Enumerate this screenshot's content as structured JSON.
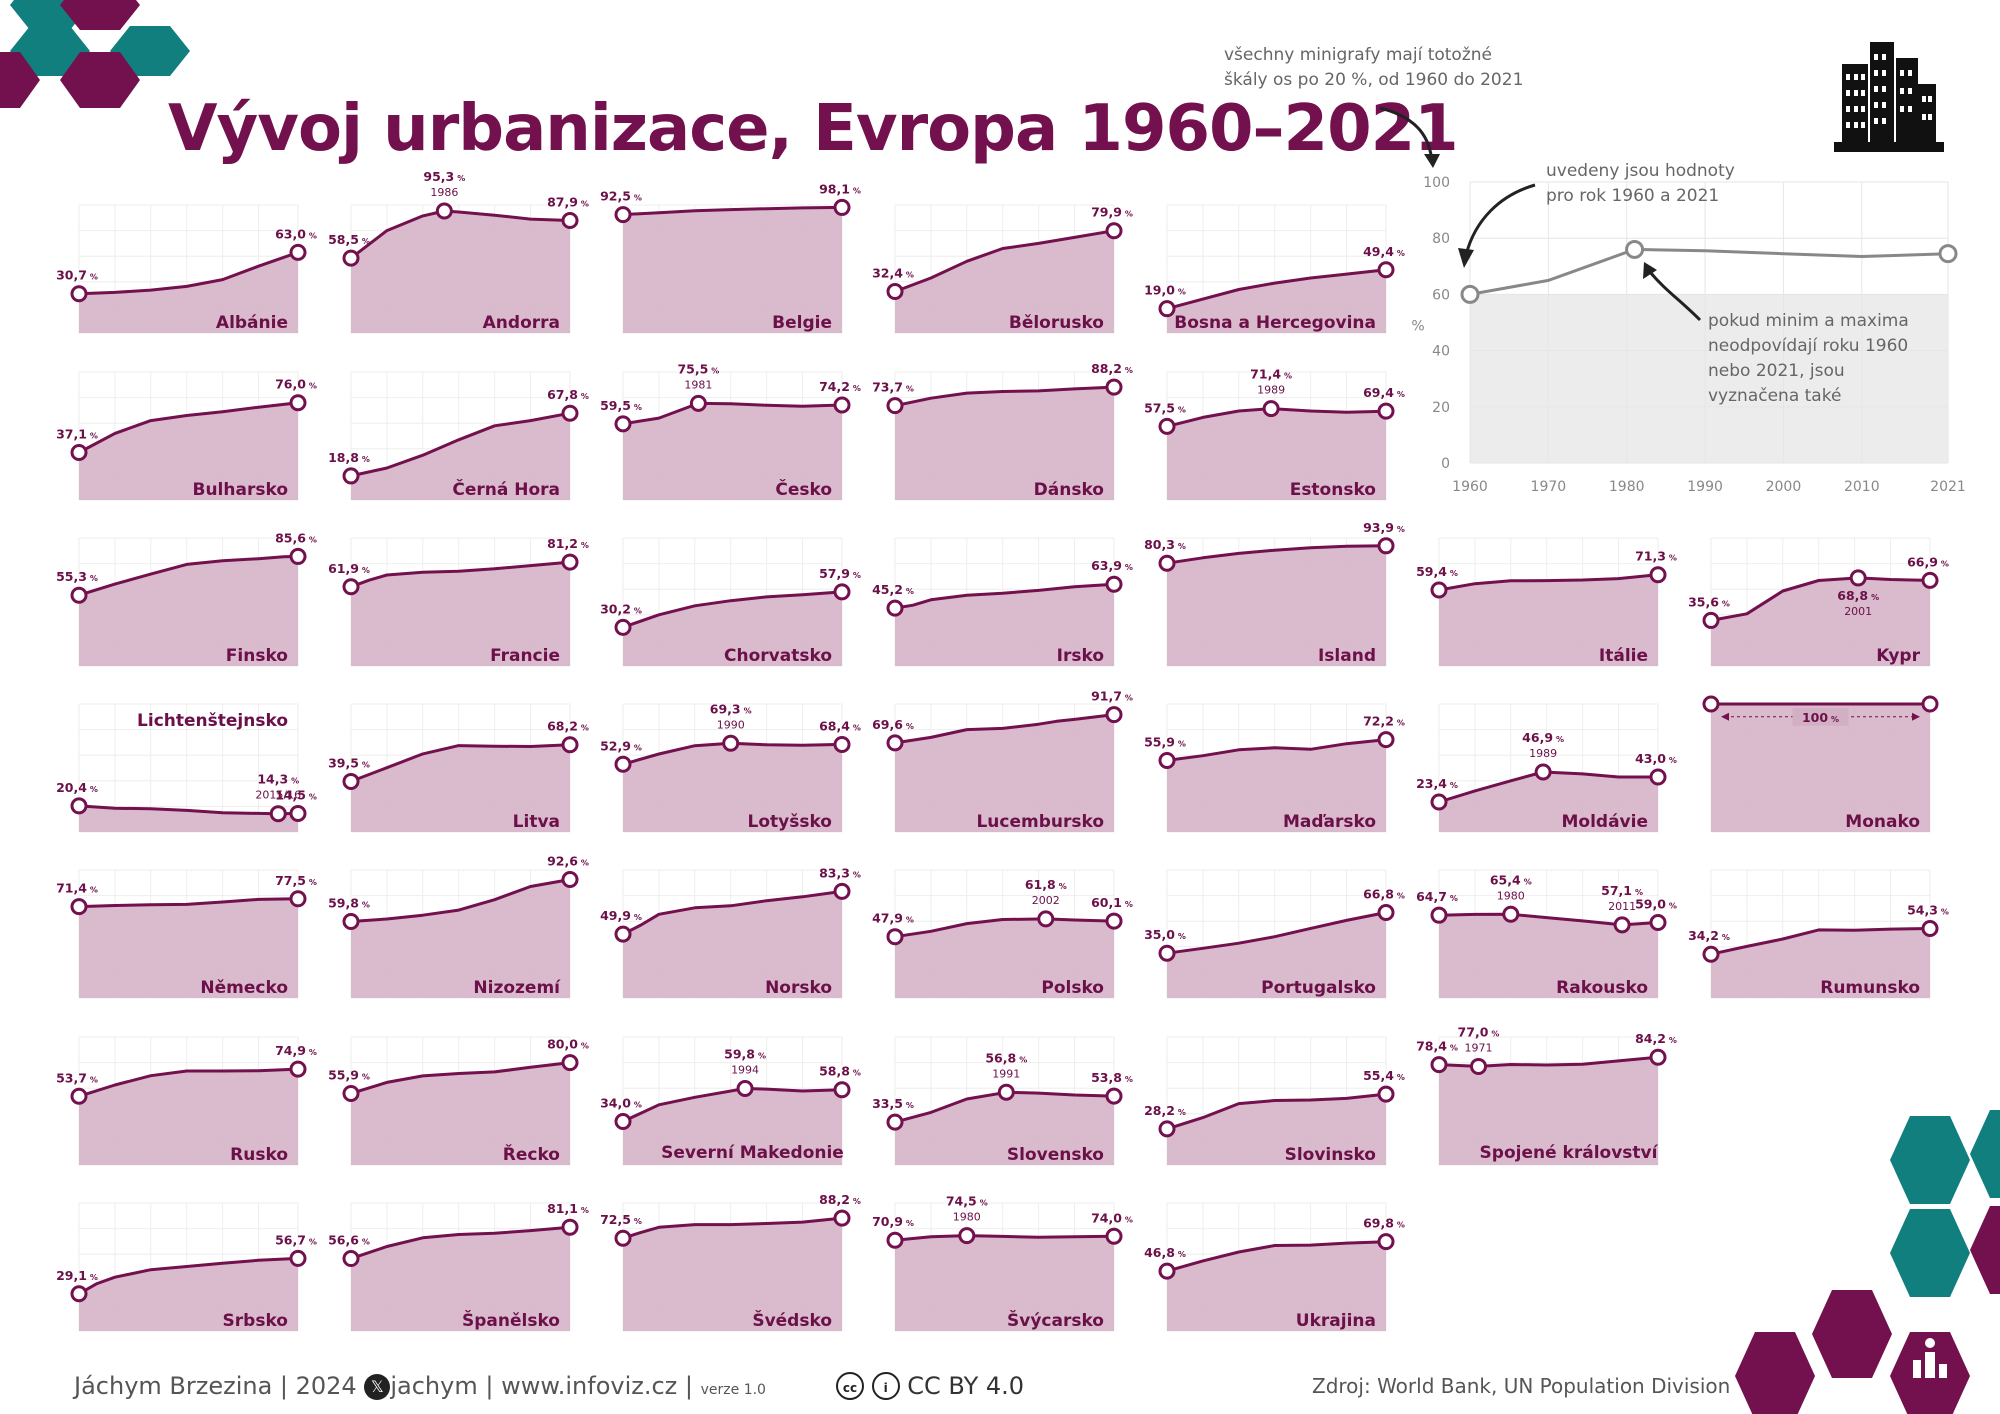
{
  "title": "Vývoj urbanizace, Evropa 1960–2021",
  "colors": {
    "primary": "#73104e",
    "fill": "#d3afc4",
    "teal": "#127f7f",
    "grey": "#888888"
  },
  "legend": {
    "note_top": [
      "všechny minigrafy mají totožné",
      "škály os po 20 %, od 1960 do 2021"
    ],
    "note_values": [
      "uvedeny jsou hodnoty",
      "pro rok 1960 a 2021"
    ],
    "note_minmax": [
      "pokud minim a maxima",
      "neodpovídají roku 1960",
      "nebo 2021, jsou",
      "vyznačena také"
    ],
    "y_unit": "%",
    "y_ticks": [
      "0",
      "20",
      "40",
      "60",
      "80",
      "100"
    ],
    "x_ticks": [
      "1960",
      "1970",
      "1980",
      "1990",
      "2000",
      "2010",
      "2021"
    ]
  },
  "footer": {
    "author": "Jáchym Brzezina | 2024",
    "x_handle": "jachym",
    "site": "www.infoviz.cz",
    "version": "verze 1.0",
    "license": "CC BY 4.0",
    "source": "Zdroj: World Bank, UN Population Division"
  },
  "chart_data": {
    "type": "line",
    "x_range": [
      1960,
      2021
    ],
    "y_range": [
      0,
      100
    ],
    "y_tick_step": 20,
    "unit": "%",
    "legend_example": {
      "x": [
        1960,
        1970,
        1981,
        1990,
        2000,
        2010,
        2021
      ],
      "y": [
        60,
        65,
        76,
        75.5,
        74.5,
        73.5,
        74.5
      ]
    },
    "countries": [
      {
        "name": "Albánie",
        "x": [
          1960,
          1970,
          1980,
          1990,
          2000,
          2010,
          2021
        ],
        "y": [
          30.7,
          31.7,
          33.5,
          36.4,
          41.7,
          52.2,
          63.0
        ],
        "start_label": "30,7",
        "end_label": "63,0"
      },
      {
        "name": "Andorra",
        "x": [
          1960,
          1970,
          1980,
          1986,
          1990,
          2000,
          2010,
          2021
        ],
        "y": [
          58.5,
          80.0,
          91.5,
          95.3,
          94.5,
          92.0,
          89.0,
          87.9
        ],
        "start_label": "58,5",
        "end_label": "87,9",
        "extra": [
          {
            "x": 1986,
            "y": 95.3,
            "label": "95,3",
            "year": "1986"
          }
        ]
      },
      {
        "name": "Belgie",
        "x": [
          1960,
          1970,
          1980,
          1990,
          2000,
          2010,
          2021
        ],
        "y": [
          92.5,
          94.0,
          95.5,
          96.4,
          97.1,
          97.7,
          98.1
        ],
        "start_label": "92,5",
        "end_label": "98,1"
      },
      {
        "name": "Bělorusko",
        "x": [
          1960,
          1970,
          1980,
          1990,
          2000,
          2010,
          2021
        ],
        "y": [
          32.4,
          43.0,
          56.0,
          66.0,
          70.0,
          74.7,
          79.9
        ],
        "start_label": "32,4",
        "end_label": "79,9"
      },
      {
        "name": "Bosna a Hercegovina",
        "x": [
          1960,
          1970,
          1980,
          1990,
          2000,
          2010,
          2021
        ],
        "y": [
          19.0,
          26.5,
          34.0,
          39.0,
          43.0,
          46.0,
          49.4
        ],
        "start_label": "19,0",
        "end_label": "49,4"
      },
      {
        "name": "Bulharsko",
        "x": [
          1960,
          1970,
          1980,
          1990,
          2000,
          2010,
          2021
        ],
        "y": [
          37.1,
          52.0,
          62.0,
          66.0,
          69.0,
          72.5,
          76.0
        ],
        "start_label": "37,1",
        "end_label": "76,0"
      },
      {
        "name": "Černá Hora",
        "x": [
          1960,
          1970,
          1980,
          1990,
          2000,
          2010,
          2021
        ],
        "y": [
          18.8,
          25.0,
          35.0,
          47.0,
          58.0,
          62.0,
          67.8
        ],
        "start_label": "18,8",
        "end_label": "67,8"
      },
      {
        "name": "Česko",
        "x": [
          1960,
          1970,
          1981,
          1990,
          2000,
          2010,
          2021
        ],
        "y": [
          59.5,
          64.0,
          75.5,
          75.2,
          74.0,
          73.3,
          74.2
        ],
        "start_label": "59,5",
        "end_label": "74,2",
        "extra": [
          {
            "x": 1981,
            "y": 75.5,
            "label": "75,5",
            "year": "1981"
          }
        ]
      },
      {
        "name": "Dánsko",
        "x": [
          1960,
          1970,
          1980,
          1990,
          2000,
          2010,
          2021
        ],
        "y": [
          73.7,
          79.5,
          83.5,
          84.8,
          85.2,
          86.8,
          88.2
        ],
        "start_label": "73,7",
        "end_label": "88,2"
      },
      {
        "name": "Estonsko",
        "x": [
          1960,
          1970,
          1980,
          1989,
          2000,
          2010,
          2021
        ],
        "y": [
          57.5,
          64.5,
          69.5,
          71.4,
          69.5,
          68.5,
          69.4
        ],
        "start_label": "57,5",
        "end_label": "69,4",
        "extra": [
          {
            "x": 1989,
            "y": 71.4,
            "label": "71,4",
            "year": "1989"
          }
        ]
      },
      {
        "name": "Finsko",
        "x": [
          1960,
          1970,
          1980,
          1990,
          2000,
          2010,
          2017,
          2021
        ],
        "y": [
          55.3,
          64.0,
          71.8,
          79.4,
          82.2,
          83.8,
          85.3,
          85.6
        ],
        "start_label": "55,3",
        "end_label": "85,6"
      },
      {
        "name": "Francie",
        "x": [
          1960,
          1965,
          1970,
          1980,
          1990,
          2000,
          2010,
          2021
        ],
        "y": [
          61.9,
          67.0,
          71.1,
          73.3,
          74.1,
          75.9,
          78.4,
          81.2
        ],
        "start_label": "61,9",
        "end_label": "81,2"
      },
      {
        "name": "Chorvatsko",
        "x": [
          1960,
          1970,
          1980,
          1990,
          2000,
          2010,
          2021
        ],
        "y": [
          30.2,
          40.0,
          47.0,
          51.0,
          54.0,
          55.6,
          57.9
        ],
        "start_label": "30,2",
        "end_label": "57,9"
      },
      {
        "name": "Irsko",
        "x": [
          1960,
          1965,
          1970,
          1980,
          1990,
          2000,
          2010,
          2021
        ],
        "y": [
          45.2,
          47.5,
          51.7,
          55.3,
          56.9,
          59.1,
          61.9,
          63.9
        ],
        "start_label": "45,2",
        "end_label": "63,9"
      },
      {
        "name": "Island",
        "x": [
          1960,
          1970,
          1980,
          1990,
          2000,
          2010,
          2021
        ],
        "y": [
          80.3,
          84.5,
          88.0,
          90.5,
          92.4,
          93.6,
          93.9
        ],
        "start_label": "80,3",
        "end_label": "93,9"
      },
      {
        "name": "Itálie",
        "x": [
          1960,
          1970,
          1980,
          1990,
          2000,
          2010,
          2021
        ],
        "y": [
          59.4,
          64.3,
          66.6,
          66.7,
          67.2,
          68.3,
          71.3
        ],
        "start_label": "59,4",
        "end_label": "71,3"
      },
      {
        "name": "Kypr",
        "x": [
          1960,
          1970,
          1980,
          1990,
          2001,
          2010,
          2021
        ],
        "y": [
          35.6,
          40.8,
          58.6,
          66.8,
          68.8,
          67.6,
          66.9
        ],
        "start_label": "35,6",
        "end_label": "66,9",
        "extra": [
          {
            "x": 2001,
            "y": 68.8,
            "label": "68,8",
            "year": "2001",
            "below": true
          }
        ]
      },
      {
        "name": "Lichtenštejnsko",
        "x": [
          1960,
          1970,
          1980,
          1990,
          2000,
          2010,
          2015,
          2016,
          2021
        ],
        "y": [
          20.4,
          18.5,
          18.2,
          16.9,
          15.1,
          14.5,
          14.3,
          14.3,
          14.5
        ],
        "start_label": "20,4",
        "end_label": "14,5",
        "label_top": true,
        "extra": [
          {
            "x": 2015.5,
            "y": 14.3,
            "label": "14,3",
            "year": "2015/16"
          }
        ]
      },
      {
        "name": "Litva",
        "x": [
          1960,
          1970,
          1980,
          1990,
          2000,
          2010,
          2021
        ],
        "y": [
          39.5,
          50.2,
          61.0,
          67.5,
          67.0,
          66.8,
          68.2
        ],
        "start_label": "39,5",
        "end_label": "68,2"
      },
      {
        "name": "Lotyšsko",
        "x": [
          1960,
          1970,
          1980,
          1990,
          2000,
          2010,
          2021
        ],
        "y": [
          52.9,
          60.9,
          67.4,
          69.3,
          68.1,
          67.8,
          68.4
        ],
        "start_label": "52,9",
        "end_label": "68,4",
        "extra": [
          {
            "x": 1990,
            "y": 69.3,
            "label": "69,3",
            "year": "1990"
          }
        ]
      },
      {
        "name": "Lucembursko",
        "x": [
          1960,
          1970,
          1980,
          1990,
          2000,
          2005,
          2010,
          2021
        ],
        "y": [
          69.6,
          73.9,
          80.0,
          80.9,
          84.2,
          86.5,
          88.0,
          91.7
        ],
        "start_label": "69,6",
        "end_label": "91,7"
      },
      {
        "name": "Maďarsko",
        "x": [
          1960,
          1970,
          1980,
          1990,
          2000,
          2010,
          2021
        ],
        "y": [
          55.9,
          59.6,
          64.2,
          65.8,
          64.6,
          69.0,
          72.2
        ],
        "start_label": "55,9",
        "end_label": "72,2"
      },
      {
        "name": "Moldávie",
        "x": [
          1960,
          1970,
          1980,
          1989,
          2000,
          2010,
          2021
        ],
        "y": [
          23.4,
          32.1,
          40.0,
          46.9,
          45.4,
          43.0,
          43.0
        ],
        "start_label": "23,4",
        "end_label": "43,0",
        "extra": [
          {
            "x": 1989,
            "y": 46.9,
            "label": "46,9",
            "year": "1989"
          }
        ]
      },
      {
        "name": "Monako",
        "x": [
          1960,
          2021
        ],
        "y": [
          100,
          100
        ],
        "start_label": "",
        "end_label": "",
        "constant_label": "100"
      },
      {
        "name": "Německo",
        "x": [
          1960,
          1970,
          1980,
          1990,
          2000,
          2010,
          2021
        ],
        "y": [
          71.4,
          72.3,
          72.8,
          73.1,
          75.0,
          77.0,
          77.5
        ],
        "start_label": "71,4",
        "end_label": "77,5"
      },
      {
        "name": "Nizozemí",
        "x": [
          1960,
          1970,
          1980,
          1990,
          2000,
          2010,
          2021
        ],
        "y": [
          59.8,
          61.7,
          64.7,
          68.7,
          76.8,
          87.1,
          92.6
        ],
        "start_label": "59,8",
        "end_label": "92,6"
      },
      {
        "name": "Norsko",
        "x": [
          1960,
          1965,
          1970,
          1980,
          1990,
          2000,
          2010,
          2021
        ],
        "y": [
          49.9,
          57.0,
          65.4,
          70.5,
          72.0,
          76.0,
          79.1,
          83.3
        ],
        "start_label": "49,9",
        "end_label": "83,3"
      },
      {
        "name": "Polsko",
        "x": [
          1960,
          1970,
          1980,
          1990,
          2002,
          2010,
          2021
        ],
        "y": [
          47.9,
          52.1,
          58.1,
          61.3,
          61.8,
          60.9,
          60.1
        ],
        "start_label": "47,9",
        "end_label": "60,1",
        "extra": [
          {
            "x": 2002,
            "y": 61.8,
            "label": "61,8",
            "year": "2002"
          }
        ]
      },
      {
        "name": "Portugalsko",
        "x": [
          1960,
          1970,
          1980,
          1990,
          2000,
          2010,
          2021
        ],
        "y": [
          35.0,
          38.8,
          42.8,
          47.9,
          54.4,
          60.6,
          66.8
        ],
        "start_label": "35,0",
        "end_label": "66,8"
      },
      {
        "name": "Rakousko",
        "x": [
          1960,
          1970,
          1980,
          1990,
          2000,
          2011,
          2021
        ],
        "y": [
          64.7,
          65.3,
          65.4,
          62.8,
          60.2,
          57.1,
          59.0
        ],
        "start_label": "64,7",
        "end_label": "59,0",
        "extra": [
          {
            "x": 1980,
            "y": 65.4,
            "label": "65,4",
            "year": "1980"
          },
          {
            "x": 2011,
            "y": 57.1,
            "label": "57,1",
            "year": "2011"
          }
        ]
      },
      {
        "name": "Rumunsko",
        "x": [
          1960,
          1970,
          1980,
          1990,
          2000,
          2010,
          2021
        ],
        "y": [
          34.2,
          40.3,
          46.1,
          53.2,
          53.0,
          53.8,
          54.3
        ],
        "start_label": "34,2",
        "end_label": "54,3"
      },
      {
        "name": "Rusko",
        "x": [
          1960,
          1970,
          1980,
          1990,
          2000,
          2010,
          2021
        ],
        "y": [
          53.7,
          62.5,
          69.8,
          73.4,
          73.4,
          73.7,
          74.9
        ],
        "start_label": "53,7",
        "end_label": "74,9"
      },
      {
        "name": "Řecko",
        "x": [
          1960,
          1970,
          1980,
          1990,
          2000,
          2010,
          2021
        ],
        "y": [
          55.9,
          64.5,
          69.6,
          71.5,
          72.7,
          76.3,
          80.0
        ],
        "start_label": "55,9",
        "end_label": "80,0"
      },
      {
        "name": "Severní Makedonie",
        "x": [
          1960,
          1970,
          1980,
          1994,
          2000,
          2010,
          2021
        ],
        "y": [
          34.0,
          47.0,
          52.9,
          59.8,
          59.3,
          57.8,
          58.8
        ],
        "start_label": "34,0",
        "end_label": "58,8",
        "label_center": true,
        "extra": [
          {
            "x": 1994,
            "y": 59.8,
            "label": "59,8",
            "year": "1994"
          }
        ]
      },
      {
        "name": "Slovensko",
        "x": [
          1960,
          1970,
          1980,
          1991,
          2000,
          2010,
          2021
        ],
        "y": [
          33.5,
          41.1,
          51.6,
          56.8,
          56.2,
          54.7,
          53.8
        ],
        "start_label": "33,5",
        "end_label": "53,8",
        "extra": [
          {
            "x": 1991,
            "y": 56.8,
            "label": "56,8",
            "year": "1991"
          }
        ]
      },
      {
        "name": "Slovinsko",
        "x": [
          1960,
          1970,
          1980,
          1990,
          2000,
          2010,
          2021
        ],
        "y": [
          28.2,
          37.0,
          48.0,
          50.4,
          50.8,
          52.0,
          55.4
        ],
        "start_label": "28,2",
        "end_label": "55,4"
      },
      {
        "name": "Spojené království",
        "x": [
          1960,
          1971,
          1980,
          1990,
          2000,
          2010,
          2021
        ],
        "y": [
          78.4,
          77.0,
          78.5,
          78.1,
          78.7,
          81.3,
          84.2
        ],
        "start_label": "78,4",
        "end_label": "84,2",
        "label_center": true,
        "extra": [
          {
            "x": 1971,
            "y": 77.0,
            "label": "77,0",
            "year": "1971"
          }
        ]
      },
      {
        "name": "Srbsko",
        "x": [
          1960,
          1965,
          1970,
          1980,
          1990,
          2000,
          2010,
          2021
        ],
        "y": [
          29.1,
          37.0,
          42.0,
          47.9,
          50.4,
          53.0,
          55.2,
          56.7
        ],
        "start_label": "29,1",
        "end_label": "56,7"
      },
      {
        "name": "Španělsko",
        "x": [
          1960,
          1970,
          1980,
          1990,
          2000,
          2010,
          2021
        ],
        "y": [
          56.6,
          66.0,
          72.8,
          75.4,
          76.3,
          78.4,
          81.1
        ],
        "start_label": "56,6",
        "end_label": "81,1"
      },
      {
        "name": "Švédsko",
        "x": [
          1960,
          1965,
          1970,
          1980,
          1990,
          2000,
          2010,
          2021
        ],
        "y": [
          72.5,
          77.0,
          81.0,
          83.1,
          83.1,
          84.0,
          85.1,
          88.2
        ],
        "start_label": "72,5",
        "end_label": "88,2"
      },
      {
        "name": "Švýcarsko",
        "x": [
          1960,
          1970,
          1980,
          1990,
          2000,
          2010,
          2021
        ],
        "y": [
          70.9,
          73.7,
          74.5,
          73.9,
          73.3,
          73.6,
          74.0
        ],
        "start_label": "70,9",
        "end_label": "74,0",
        "extra": [
          {
            "x": 1980,
            "y": 74.5,
            "label": "74,5",
            "year": "1980"
          }
        ]
      },
      {
        "name": "Ukrajina",
        "x": [
          1960,
          1970,
          1980,
          1990,
          2000,
          2010,
          2021
        ],
        "y": [
          46.8,
          54.8,
          61.7,
          66.8,
          67.1,
          68.7,
          69.8
        ],
        "start_label": "46,8",
        "end_label": "69,8"
      }
    ]
  }
}
